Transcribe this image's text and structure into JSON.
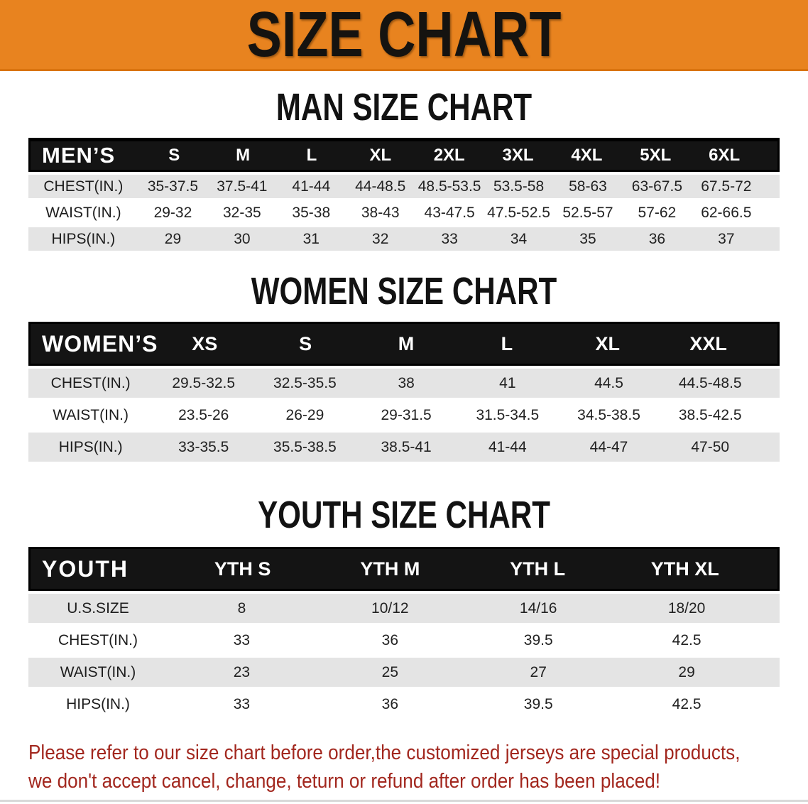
{
  "banner": {
    "title": "SIZE CHART",
    "bg_color": "#E8831F",
    "text_color": "#151310"
  },
  "sections": [
    {
      "heading": "MAN SIZE CHART",
      "header_label": "MEN’S",
      "columns": [
        "S",
        "M",
        "L",
        "XL",
        "2XL",
        "3XL",
        "4XL",
        "5XL",
        "6XL"
      ],
      "rows": [
        {
          "label": "CHEST(IN.)",
          "values": [
            "35-37.5",
            "37.5-41",
            "41-44",
            "44-48.5",
            "48.5-53.5",
            "53.5-58",
            "58-63",
            "63-67.5",
            "67.5-72"
          ]
        },
        {
          "label": "WAIST(IN.)",
          "values": [
            "29-32",
            "32-35",
            "35-38",
            "38-43",
            "43-47.5",
            "47.5-52.5",
            "52.5-57",
            "57-62",
            "62-66.5"
          ]
        },
        {
          "label": "HIPS(IN.)",
          "values": [
            "29",
            "30",
            "31",
            "32",
            "33",
            "34",
            "35",
            "36",
            "37"
          ]
        }
      ]
    },
    {
      "heading": "WOMEN SIZE CHART",
      "header_label": "WOMEN’S",
      "columns": [
        "XS",
        "S",
        "M",
        "L",
        "XL",
        "XXL"
      ],
      "rows": [
        {
          "label": "CHEST(IN.)",
          "values": [
            "29.5-32.5",
            "32.5-35.5",
            "38",
            "41",
            "44.5",
            "44.5-48.5"
          ]
        },
        {
          "label": "WAIST(IN.)",
          "values": [
            "23.5-26",
            "26-29",
            "29-31.5",
            "31.5-34.5",
            "34.5-38.5",
            "38.5-42.5"
          ]
        },
        {
          "label": "HIPS(IN.)",
          "values": [
            "33-35.5",
            "35.5-38.5",
            "38.5-41",
            "41-44",
            "44-47",
            "47-50"
          ]
        }
      ]
    },
    {
      "heading": "YOUTH SIZE CHART",
      "header_label": "YOUTH",
      "columns": [
        "YTH S",
        "YTH M",
        "YTH L",
        "YTH XL"
      ],
      "rows": [
        {
          "label": "U.S.SIZE",
          "values": [
            "8",
            "10/12",
            "14/16",
            "18/20"
          ]
        },
        {
          "label": "CHEST(IN.)",
          "values": [
            "33",
            "36",
            "39.5",
            "42.5"
          ]
        },
        {
          "label": "WAIST(IN.)",
          "values": [
            "23",
            "25",
            "27",
            "29"
          ]
        },
        {
          "label": "HIPS(IN.)",
          "values": [
            "33",
            "36",
            "39.5",
            "42.5"
          ]
        }
      ]
    }
  ],
  "footnote": {
    "line1": "Please refer to our size chart before order,the customized jerseys are special products,",
    "line2": "we don't accept cancel, change, teturn or refund after order has been placed!",
    "color": "#A2271E"
  }
}
